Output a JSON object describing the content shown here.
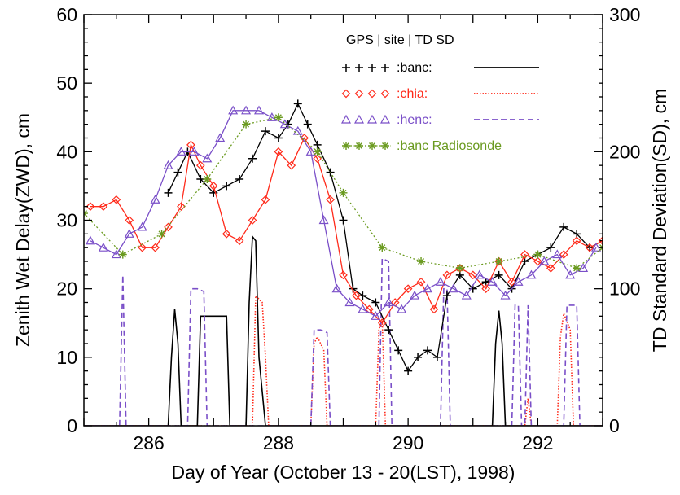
{
  "chart_data": {
    "type": "line",
    "xlabel": "Day of Year (October 13 - 20(LST), 1998)",
    "ylabel_left": "Zenith Wet Delay(ZWD), cm",
    "ylabel_right": "TD Standard Deviation(SD), cm",
    "xlim": [
      285,
      293
    ],
    "ylim_left": [
      0,
      60
    ],
    "ylim_right": [
      0,
      300
    ],
    "x_ticks": [
      286,
      288,
      290,
      292
    ],
    "y_left_ticks": [
      0,
      10,
      20,
      30,
      40,
      50,
      60
    ],
    "y_right_ticks": [
      0,
      100,
      200,
      300
    ],
    "legend_header": "GPS   |  site   | TD SD",
    "grid": false,
    "legend_placement": "top-right",
    "series": [
      {
        "name": ":banc:",
        "kind": "zwd",
        "color": "#000000",
        "marker": "plus",
        "x": [
          286.3,
          286.45,
          286.6,
          286.8,
          287.0,
          287.2,
          287.4,
          287.6,
          287.8,
          288.0,
          288.15,
          288.3,
          288.45,
          288.6,
          288.8,
          289.0,
          289.15,
          289.3,
          289.5,
          289.7,
          289.85,
          290.0,
          290.15,
          290.3,
          290.45,
          290.6,
          290.8,
          291.0,
          291.2,
          291.4,
          291.6,
          291.8,
          292.0,
          292.2,
          292.4,
          292.6,
          292.8,
          293.0
        ],
        "y": [
          34,
          37,
          40,
          36,
          34,
          35,
          36,
          39,
          43,
          42,
          44,
          47,
          44,
          41,
          37,
          30,
          20,
          19,
          18,
          14,
          11,
          8,
          10,
          11,
          10,
          19,
          22,
          20,
          21,
          22,
          20,
          24,
          25,
          26,
          29,
          28,
          26,
          27
        ]
      },
      {
        "name": ":chia:",
        "kind": "zwd",
        "color": "#ff2a1a",
        "marker": "diamond",
        "x": [
          285.1,
          285.3,
          285.5,
          285.7,
          285.9,
          286.1,
          286.3,
          286.5,
          286.65,
          286.8,
          287.0,
          287.2,
          287.4,
          287.6,
          287.8,
          288.0,
          288.2,
          288.4,
          288.6,
          288.8,
          289.0,
          289.2,
          289.4,
          289.6,
          289.8,
          290.0,
          290.2,
          290.4,
          290.6,
          290.8,
          291.0,
          291.2,
          291.4,
          291.6,
          291.8,
          292.0,
          292.2,
          292.4,
          292.6,
          292.8,
          293.0
        ],
        "y": [
          32,
          32,
          33,
          30,
          26,
          26,
          29,
          32,
          41,
          38,
          35,
          28,
          27,
          30,
          33,
          40,
          38,
          42,
          39,
          33,
          22,
          19,
          17,
          15,
          18,
          20,
          21,
          17,
          22,
          23,
          22,
          20,
          24,
          21,
          25,
          24,
          23,
          25,
          27,
          26,
          27
        ]
      },
      {
        "name": ":henc:",
        "kind": "zwd",
        "color": "#7a4fc8",
        "marker": "triangle",
        "x": [
          285.1,
          285.3,
          285.5,
          285.7,
          285.9,
          286.1,
          286.3,
          286.5,
          286.7,
          286.9,
          287.1,
          287.3,
          287.5,
          287.7,
          287.9,
          288.1,
          288.3,
          288.5,
          288.7,
          288.9,
          289.1,
          289.3,
          289.5,
          289.7,
          289.9,
          290.1,
          290.3,
          290.5,
          290.7,
          290.9,
          291.1,
          291.3,
          291.5,
          291.7,
          291.9,
          292.1,
          292.3,
          292.5,
          292.7,
          292.9
        ],
        "y": [
          27,
          26,
          25,
          28,
          29,
          33,
          38,
          40,
          40,
          39,
          42,
          46,
          46,
          46,
          45,
          44,
          43,
          40,
          30,
          20,
          18,
          17,
          16,
          18,
          17,
          19,
          20,
          21,
          20,
          19,
          22,
          21,
          19,
          21,
          22,
          24,
          25,
          22,
          23,
          26
        ]
      },
      {
        "name": ":banc Radiosonde",
        "kind": "zwd",
        "color": "#6a9a1f",
        "marker": "asterisk",
        "dotted": true,
        "x": [
          285.0,
          285.6,
          286.2,
          286.9,
          287.5,
          288.0,
          288.6,
          289.0,
          289.6,
          290.2,
          290.8,
          291.4,
          292.0,
          292.6,
          293.0
        ],
        "y": [
          31,
          25,
          28,
          36,
          44,
          45,
          40,
          34,
          26,
          24,
          23,
          24,
          25,
          23,
          26
        ]
      },
      {
        "name": "banc TD SD",
        "kind": "sd",
        "color": "#000000",
        "dash": "solid",
        "x": [
          285.0,
          286.3,
          286.35,
          286.4,
          286.45,
          286.5,
          286.75,
          286.8,
          287.2,
          287.25,
          287.5,
          287.55,
          287.6,
          287.65,
          287.7,
          287.8,
          291.3,
          291.35,
          291.4,
          291.45,
          291.5,
          293.0
        ],
        "y": [
          0,
          0,
          50,
          85,
          60,
          0,
          0,
          80,
          80,
          0,
          0,
          90,
          138,
          135,
          50,
          0,
          0,
          60,
          84,
          60,
          0,
          0
        ]
      },
      {
        "name": "chia TD SD",
        "kind": "sd",
        "color": "#ff2a1a",
        "dash": "dotted",
        "x": [
          285.0,
          287.6,
          287.65,
          287.75,
          287.8,
          287.85,
          288.5,
          288.55,
          288.6,
          288.7,
          288.75,
          289.5,
          289.55,
          289.6,
          289.65,
          291.8,
          291.85,
          291.9,
          292.3,
          292.35,
          292.4,
          292.5,
          292.55,
          293.0
        ],
        "y": [
          0,
          0,
          95,
          90,
          50,
          0,
          0,
          60,
          65,
          55,
          0,
          0,
          70,
          78,
          0,
          0,
          20,
          0,
          0,
          65,
          82,
          70,
          0,
          0
        ]
      },
      {
        "name": "henc TD SD",
        "kind": "sd",
        "color": "#7a4fc8",
        "dash": "dashed",
        "x": [
          285.0,
          285.55,
          285.6,
          285.65,
          286.6,
          286.65,
          286.75,
          286.85,
          286.9,
          288.5,
          288.55,
          288.65,
          288.75,
          288.8,
          289.55,
          289.6,
          289.7,
          289.75,
          290.5,
          290.55,
          290.6,
          290.65,
          291.6,
          291.65,
          291.7,
          291.75,
          291.8,
          291.85,
          291.9,
          292.4,
          292.45,
          292.6,
          292.65,
          293.0
        ],
        "y": [
          0,
          0,
          110,
          0,
          0,
          100,
          100,
          98,
          0,
          0,
          70,
          70,
          68,
          0,
          0,
          122,
          120,
          0,
          0,
          100,
          100,
          0,
          0,
          88,
          88,
          0,
          0,
          88,
          0,
          0,
          88,
          88,
          0,
          0
        ]
      }
    ]
  }
}
